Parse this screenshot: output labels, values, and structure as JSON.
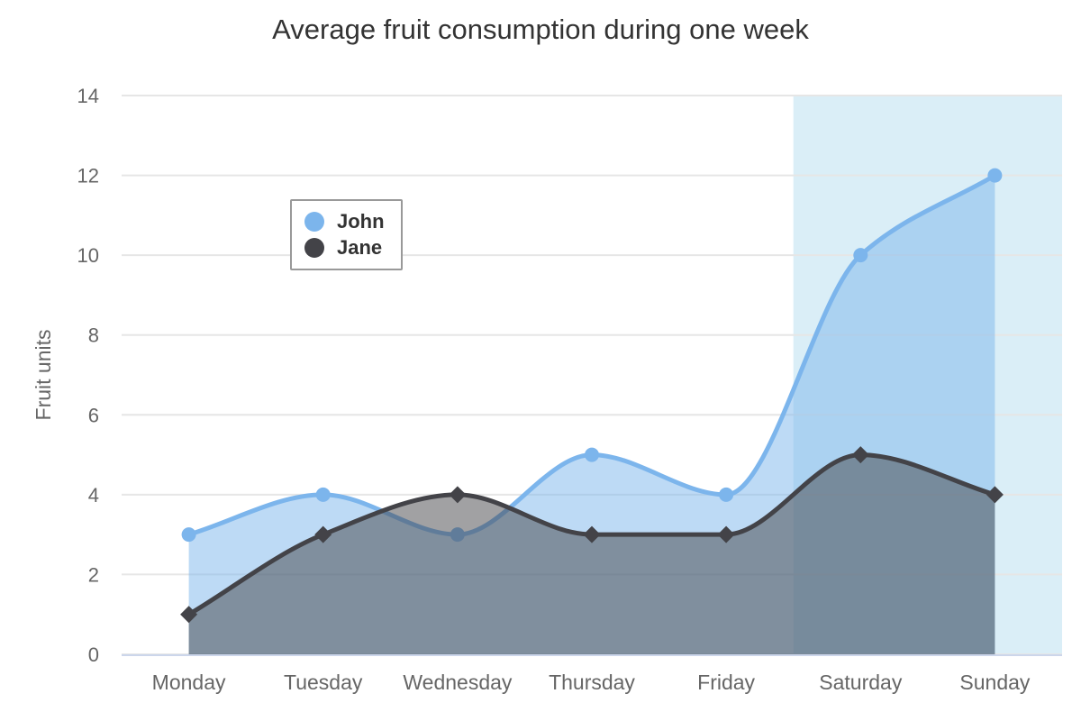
{
  "chart_data": {
    "type": "area",
    "subtype": "areaspline",
    "title": "Average fruit consumption during one week",
    "xlabel": "",
    "ylabel": "Fruit units",
    "categories": [
      "Monday",
      "Tuesday",
      "Wednesday",
      "Thursday",
      "Friday",
      "Saturday",
      "Sunday"
    ],
    "series": [
      {
        "name": "John",
        "values": [
          3,
          4,
          3,
          5,
          4,
          10,
          12
        ],
        "color": "#7cb5ec",
        "marker": "circle"
      },
      {
        "name": "Jane",
        "values": [
          1,
          3,
          4,
          3,
          3,
          5,
          4
        ],
        "color": "#434348",
        "marker": "diamond"
      }
    ],
    "ylim": [
      0,
      14
    ],
    "ytick_step": 2,
    "grid": true,
    "fill_opacity": 0.5,
    "legend_position": "floating-upper-left",
    "plot_band": {
      "from_category": 4.5,
      "to_category": 6.5,
      "color": "rgba(68,170,213,0.2)"
    }
  },
  "style_colors": {
    "background": "#ffffff",
    "grid_line": "#e6e6e6",
    "axis_line": "#ccd6eb",
    "title_text": "#333333",
    "axis_label_text": "#666666",
    "legend_text": "#333333",
    "legend_border": "#999999"
  }
}
